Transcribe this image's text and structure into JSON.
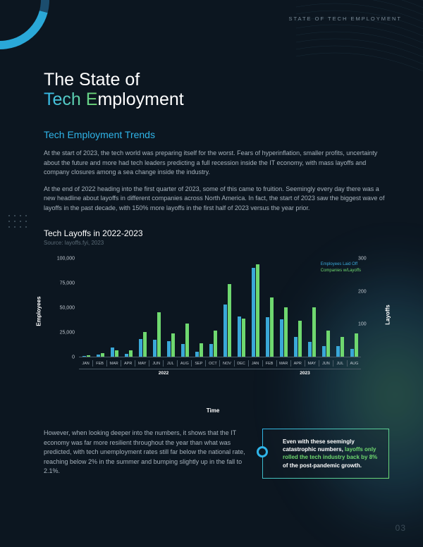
{
  "header_tag": "STATE OF TECH EMPLOYMENT",
  "title_line1": "The State of",
  "title_line2_grad": "Tech E",
  "title_line2_rest": "mployment",
  "subtitle": "Tech Employment Trends",
  "para1": "At the start of 2023, the tech world was preparing itself for the worst. Fears of hyperinflation, smaller profits, uncertainty about the future and more had tech leaders predicting a full recession inside the IT economy, with mass layoffs and company closures among a sea change inside the industry.",
  "para2": "At the end of 2022 heading into the first quarter of 2023, some of this came to fruition. Seemingly every day there was a new headline about layoffs in different companies across North America. In fact, the start of 2023 saw the biggest wave of layoffs in the past decade, with 150% more layoffs in the first half of 2023 versus the year prior.",
  "chart": {
    "title": "Tech Layoffs in 2022-2023",
    "source": "Source: layoffs.fyi, 2023",
    "y1_label": "Employees",
    "y2_label": "Layoffs",
    "x_label": "Time",
    "y1_max": 100000,
    "y2_max": 300,
    "y1_ticks": [
      0,
      25000,
      50000,
      75000,
      100000
    ],
    "y1_tick_labels": [
      "0",
      "25,000",
      "50,000",
      "75,000",
      "100,000"
    ],
    "y2_ticks": [
      100,
      200,
      300
    ],
    "y2_tick_labels": [
      "100",
      "200",
      "300"
    ],
    "legend_a": "Employees Laid Off",
    "legend_b": "Companies w/Layoffs",
    "color_a": "#3aa8d8",
    "color_b": "#6fd86f",
    "months": [
      "JAN",
      "FEB",
      "MAR",
      "APR",
      "MAY",
      "JUN",
      "JUL",
      "AUG",
      "SEP",
      "OCT",
      "NOV",
      "DEC",
      "JAN",
      "FEB",
      "MAR",
      "APR",
      "MAY",
      "JUN",
      "JUL",
      "AUG"
    ],
    "year_split": 12,
    "year_a": "2022",
    "year_b": "2023",
    "employees": [
      1000,
      2500,
      9000,
      3000,
      18000,
      17000,
      16000,
      13000,
      5000,
      13000,
      53000,
      41000,
      90000,
      40000,
      38000,
      20000,
      15000,
      11000,
      11000,
      8000
    ],
    "companies": [
      5,
      10,
      20,
      20,
      75,
      135,
      70,
      100,
      40,
      80,
      220,
      115,
      280,
      180,
      150,
      110,
      150,
      80,
      60,
      70
    ]
  },
  "bottom_para": "However, when looking deeper into the numbers, it shows that the IT economy was far more resilient throughout the year than what was predicted, with tech unemployment rates still far below the national rate, reaching below 2% in the summer and bumping slightly up in the fall to 2.1%.",
  "callout_pre": "Even with these seemingly catastrophic numbers, ",
  "callout_hl": "layoffs only rolled the tech industry back by 8%",
  "callout_post": " of the post-pandemic growth.",
  "page_num": "03"
}
